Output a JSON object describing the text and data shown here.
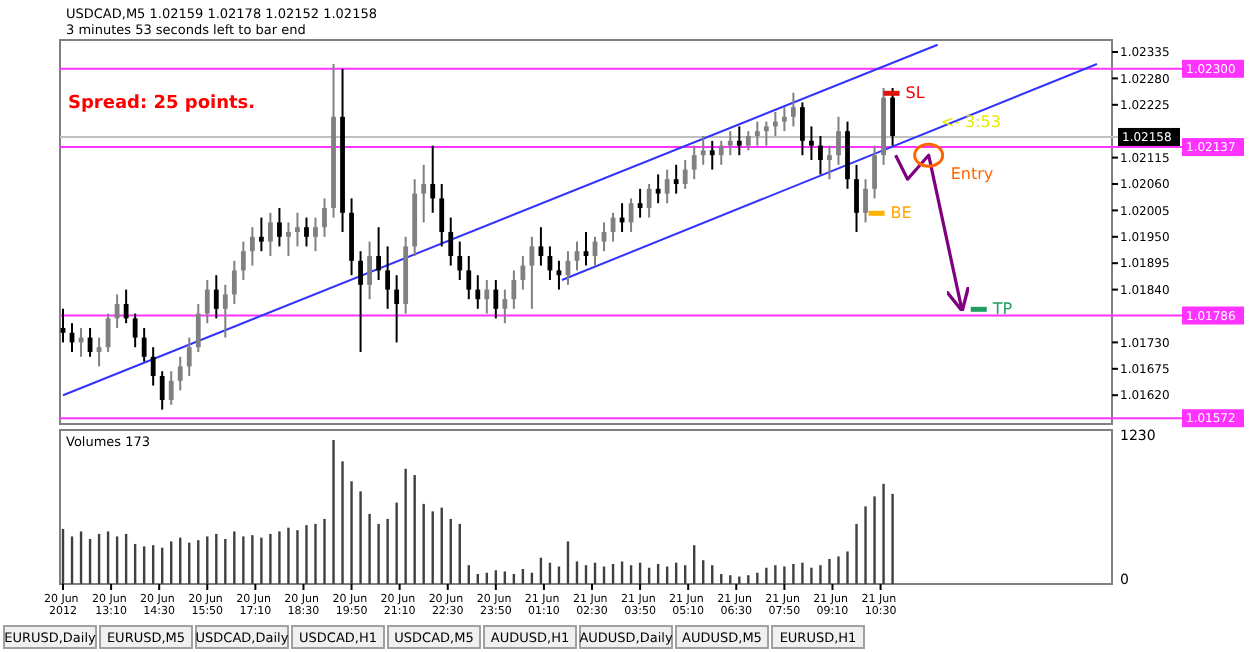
{
  "chart_data": [
    {
      "type": "candlestick",
      "title": "USDCAD,M5  1.02159 1.02178 1.02152 1.02158",
      "subtitle": "3 minutes 53 seconds left to bar end",
      "x": [
        "2012-06-20T11:50",
        "2012-06-20T12:05",
        "2012-06-20T12:20",
        "2012-06-20T12:35",
        "2012-06-20T12:50",
        "2012-06-20T13:05",
        "2012-06-20T13:20",
        "2012-06-20T13:35",
        "2012-06-20T13:50",
        "2012-06-20T14:05",
        "2012-06-20T14:20",
        "2012-06-20T14:35",
        "2012-06-20T14:50",
        "2012-06-20T15:05",
        "2012-06-20T15:20",
        "2012-06-20T15:35",
        "2012-06-20T15:50",
        "2012-06-20T16:05",
        "2012-06-20T16:20",
        "2012-06-20T16:35",
        "2012-06-20T16:50",
        "2012-06-20T17:05",
        "2012-06-20T17:20",
        "2012-06-20T17:35",
        "2012-06-20T17:50",
        "2012-06-20T18:05",
        "2012-06-20T18:20",
        "2012-06-20T18:35",
        "2012-06-20T18:50",
        "2012-06-20T19:05",
        "2012-06-20T19:20",
        "2012-06-20T19:35",
        "2012-06-20T19:50",
        "2012-06-20T20:05",
        "2012-06-20T20:20",
        "2012-06-20T20:35",
        "2012-06-20T20:50",
        "2012-06-20T21:05",
        "2012-06-20T21:20",
        "2012-06-20T21:35",
        "2012-06-20T21:50",
        "2012-06-20T22:05",
        "2012-06-20T22:20",
        "2012-06-20T22:35",
        "2012-06-20T22:50",
        "2012-06-20T23:05",
        "2012-06-20T23:20",
        "2012-06-20T23:35",
        "2012-06-20T23:50",
        "2012-06-21T00:05",
        "2012-06-21T00:20",
        "2012-06-21T00:35",
        "2012-06-21T00:50",
        "2012-06-21T01:05",
        "2012-06-21T01:20",
        "2012-06-21T01:35",
        "2012-06-21T01:50",
        "2012-06-21T02:05",
        "2012-06-21T02:20",
        "2012-06-21T02:35",
        "2012-06-21T02:50",
        "2012-06-21T03:05",
        "2012-06-21T03:20",
        "2012-06-21T03:35",
        "2012-06-21T03:50",
        "2012-06-21T04:05",
        "2012-06-21T04:20",
        "2012-06-21T04:35",
        "2012-06-21T04:50",
        "2012-06-21T05:05",
        "2012-06-21T05:20",
        "2012-06-21T05:35",
        "2012-06-21T05:50",
        "2012-06-21T06:05",
        "2012-06-21T06:20",
        "2012-06-21T06:35",
        "2012-06-21T06:50",
        "2012-06-21T07:05",
        "2012-06-21T07:20",
        "2012-06-21T07:35",
        "2012-06-21T07:50",
        "2012-06-21T08:05",
        "2012-06-21T08:20",
        "2012-06-21T08:35",
        "2012-06-21T08:50",
        "2012-06-21T09:05",
        "2012-06-21T09:20",
        "2012-06-21T09:35",
        "2012-06-21T09:50",
        "2012-06-21T10:05",
        "2012-06-21T10:20",
        "2012-06-21T10:35",
        "2012-06-21T10:50"
      ],
      "ohlc": [
        [
          1.0176,
          1.018,
          1.0173,
          1.0175
        ],
        [
          1.0175,
          1.0177,
          1.0171,
          1.0173
        ],
        [
          1.0173,
          1.0176,
          1.017,
          1.0174
        ],
        [
          1.0174,
          1.0176,
          1.017,
          1.0171
        ],
        [
          1.0171,
          1.0174,
          1.0168,
          1.0172
        ],
        [
          1.0172,
          1.0179,
          1.0171,
          1.0178
        ],
        [
          1.0178,
          1.0183,
          1.0176,
          1.0181
        ],
        [
          1.0181,
          1.0184,
          1.0177,
          1.0178
        ],
        [
          1.0178,
          1.0179,
          1.0172,
          1.0174
        ],
        [
          1.0174,
          1.0176,
          1.0169,
          1.017
        ],
        [
          1.017,
          1.0172,
          1.0164,
          1.0166
        ],
        [
          1.0166,
          1.0167,
          1.0159,
          1.0161
        ],
        [
          1.0161,
          1.0167,
          1.016,
          1.0165
        ],
        [
          1.0165,
          1.017,
          1.0163,
          1.0168
        ],
        [
          1.0168,
          1.0174,
          1.0166,
          1.0172
        ],
        [
          1.0172,
          1.0181,
          1.0171,
          1.0179
        ],
        [
          1.0179,
          1.0186,
          1.0177,
          1.0184
        ],
        [
          1.0184,
          1.0187,
          1.0178,
          1.018
        ],
        [
          1.018,
          1.0185,
          1.0174,
          1.0183
        ],
        [
          1.0183,
          1.019,
          1.0181,
          1.0188
        ],
        [
          1.0188,
          1.0194,
          1.0186,
          1.0192
        ],
        [
          1.0192,
          1.0197,
          1.0189,
          1.0195
        ],
        [
          1.0195,
          1.0199,
          1.0192,
          1.0194
        ],
        [
          1.0194,
          1.02,
          1.0191,
          1.0198
        ],
        [
          1.0198,
          1.0201,
          1.0193,
          1.0195
        ],
        [
          1.0195,
          1.0198,
          1.0191,
          1.0196
        ],
        [
          1.0196,
          1.02,
          1.0193,
          1.0197
        ],
        [
          1.0197,
          1.0199,
          1.0193,
          1.0195
        ],
        [
          1.0195,
          1.0199,
          1.0192,
          1.0197
        ],
        [
          1.0197,
          1.0203,
          1.0195,
          1.0201
        ],
        [
          1.0201,
          1.0231,
          1.0199,
          1.022
        ],
        [
          1.022,
          1.023,
          1.0196,
          1.02
        ],
        [
          1.02,
          1.0203,
          1.0187,
          1.019
        ],
        [
          1.019,
          1.0192,
          1.0171,
          1.0185
        ],
        [
          1.0185,
          1.0194,
          1.0182,
          1.0191
        ],
        [
          1.0191,
          1.0197,
          1.0186,
          1.0188
        ],
        [
          1.0188,
          1.0193,
          1.018,
          1.0184
        ],
        [
          1.0184,
          1.0187,
          1.0173,
          1.0181
        ],
        [
          1.0181,
          1.0195,
          1.0179,
          1.0193
        ],
        [
          1.0193,
          1.0207,
          1.0191,
          1.0204
        ],
        [
          1.0204,
          1.021,
          1.0198,
          1.0206
        ],
        [
          1.0206,
          1.0214,
          1.02,
          1.0203
        ],
        [
          1.0203,
          1.0206,
          1.0193,
          1.0196
        ],
        [
          1.0196,
          1.0199,
          1.0189,
          1.0191
        ],
        [
          1.0191,
          1.0194,
          1.0186,
          1.0188
        ],
        [
          1.0188,
          1.0191,
          1.0182,
          1.0184
        ],
        [
          1.0184,
          1.0187,
          1.018,
          1.0182
        ],
        [
          1.0182,
          1.0186,
          1.0179,
          1.0184
        ],
        [
          1.0184,
          1.0186,
          1.0178,
          1.018
        ],
        [
          1.018,
          1.0184,
          1.0177,
          1.0182
        ],
        [
          1.0182,
          1.0188,
          1.018,
          1.0186
        ],
        [
          1.0186,
          1.0191,
          1.0184,
          1.0189
        ],
        [
          1.0189,
          1.0195,
          1.018,
          1.0193
        ],
        [
          1.0193,
          1.0197,
          1.0189,
          1.0191
        ],
        [
          1.0191,
          1.0193,
          1.0186,
          1.0188
        ],
        [
          1.0188,
          1.019,
          1.0184,
          1.0187
        ],
        [
          1.0187,
          1.0192,
          1.0185,
          1.019
        ],
        [
          1.019,
          1.0194,
          1.0188,
          1.0192
        ],
        [
          1.0192,
          1.0196,
          1.0189,
          1.0191
        ],
        [
          1.0191,
          1.0195,
          1.0189,
          1.0194
        ],
        [
          1.0194,
          1.0198,
          1.0192,
          1.0196
        ],
        [
          1.0196,
          1.02,
          1.0194,
          1.0199
        ],
        [
          1.0199,
          1.0202,
          1.0196,
          1.0198
        ],
        [
          1.0198,
          1.0203,
          1.0196,
          1.0202
        ],
        [
          1.0202,
          1.0205,
          1.0199,
          1.0201
        ],
        [
          1.0201,
          1.0206,
          1.0199,
          1.0205
        ],
        [
          1.0205,
          1.0208,
          1.0202,
          1.0204
        ],
        [
          1.0204,
          1.0209,
          1.0202,
          1.0207
        ],
        [
          1.0207,
          1.021,
          1.0204,
          1.0206
        ],
        [
          1.0206,
          1.0211,
          1.0205,
          1.0209
        ],
        [
          1.0209,
          1.0214,
          1.0207,
          1.0212
        ],
        [
          1.0212,
          1.0216,
          1.021,
          1.0213
        ],
        [
          1.0213,
          1.0215,
          1.0209,
          1.0212
        ],
        [
          1.0212,
          1.0215,
          1.021,
          1.0214
        ],
        [
          1.0214,
          1.0217,
          1.0212,
          1.0215
        ],
        [
          1.0215,
          1.0218,
          1.0212,
          1.0214
        ],
        [
          1.0214,
          1.0217,
          1.0213,
          1.0216
        ],
        [
          1.0216,
          1.0219,
          1.0214,
          1.0217
        ],
        [
          1.0217,
          1.0219,
          1.0214,
          1.0218
        ],
        [
          1.0218,
          1.0221,
          1.0216,
          1.0219
        ],
        [
          1.0219,
          1.0222,
          1.0217,
          1.022
        ],
        [
          1.022,
          1.0225,
          1.0218,
          1.0222
        ],
        [
          1.0222,
          1.0223,
          1.0212,
          1.0215
        ],
        [
          1.0215,
          1.0218,
          1.0211,
          1.0214
        ],
        [
          1.0214,
          1.0216,
          1.0208,
          1.0211
        ],
        [
          1.0211,
          1.0214,
          1.0207,
          1.0212
        ],
        [
          1.0212,
          1.022,
          1.021,
          1.0217
        ],
        [
          1.0217,
          1.0219,
          1.0205,
          1.0207
        ],
        [
          1.0207,
          1.021,
          1.0196,
          1.02
        ],
        [
          1.02,
          1.0207,
          1.0198,
          1.0205
        ],
        [
          1.0205,
          1.0214,
          1.0203,
          1.0212
        ],
        [
          1.0212,
          1.0226,
          1.021,
          1.0224
        ],
        [
          1.0224,
          1.0226,
          1.0214,
          1.0216
        ]
      ],
      "series": [
        {
          "type": "line",
          "color": "#3333ff",
          "x": [
            "2012-06-20T11:50",
            "2012-06-21T12:05"
          ],
          "values": [
            1.0162,
            1.0235
          ]
        },
        {
          "type": "line",
          "color": "#3333ff",
          "x": [
            "2012-06-21T01:40",
            "2012-06-21T16:30"
          ],
          "values": [
            1.0186,
            1.0231
          ]
        },
        {
          "type": "line",
          "color": "#800080",
          "x": [
            "2012-06-21T10:55",
            "2012-06-21T11:15",
            "2012-06-21T11:50",
            "2012-06-21T12:45"
          ],
          "values": [
            1.0212,
            1.0207,
            1.0212,
            1.018
          ]
        }
      ],
      "xlim": [
        "2012-06-20T11:45",
        "2012-06-21T16:55"
      ],
      "ylim": [
        1.0156,
        1.0236
      ],
      "yticks": [
        {
          "value": 1.0162,
          "label": "1.01620"
        },
        {
          "value": 1.01675,
          "label": "1.01675"
        },
        {
          "value": 1.0173,
          "label": "1.01730"
        },
        {
          "value": 1.0184,
          "label": "1.01840"
        },
        {
          "value": 1.01895,
          "label": "1.01895"
        },
        {
          "value": 1.0195,
          "label": "1.01950"
        },
        {
          "value": 1.02005,
          "label": "1.02005"
        },
        {
          "value": 1.0206,
          "label": "1.02060"
        },
        {
          "value": 1.02115,
          "label": "1.02115"
        },
        {
          "value": 1.02225,
          "label": "1.02225"
        },
        {
          "value": 1.0228,
          "label": "1.02280"
        },
        {
          "value": 1.02335,
          "label": "1.02335"
        }
      ],
      "tick_labels": "y",
      "ref_lines": [
        {
          "axis": "y",
          "value": 1.023,
          "label": "1.02300",
          "color": "#ff33ff"
        },
        {
          "axis": "y",
          "value": 1.02137,
          "label": "1.02137",
          "color": "#ff33ff"
        },
        {
          "axis": "y",
          "value": 1.01786,
          "label": "1.01786",
          "color": "#ff33ff"
        },
        {
          "axis": "y",
          "value": 1.01572,
          "label": "1.01572",
          "color": "#ff33ff"
        },
        {
          "axis": "y",
          "value": 1.02158,
          "label": "1.02158",
          "color": "#c0c0c0"
        }
      ],
      "annotations": [
        "Spread: 25 points.",
        {
          "text": "SL",
          "x": "2012-06-21T10:35",
          "y": 1.0225
        },
        {
          "text": "BE",
          "x": "2012-06-21T10:10",
          "y": 1.02
        },
        {
          "text": "TP",
          "x": "2012-06-21T13:00",
          "y": 1.018
        },
        {
          "text": "Entry",
          "x": "2012-06-21T11:50",
          "y": 1.0212
        },
        {
          "text": "<- 3:53",
          "x": "2012-06-21T12:10",
          "y": 1.0219
        }
      ]
    },
    {
      "type": "bar",
      "title": "Volumes 173",
      "color": "#404040",
      "x": [
        "2012-06-20T11:50",
        "2012-06-20T12:05",
        "2012-06-20T12:20",
        "2012-06-20T12:35",
        "2012-06-20T12:50",
        "2012-06-20T13:05",
        "2012-06-20T13:20",
        "2012-06-20T13:35",
        "2012-06-20T13:50",
        "2012-06-20T14:05",
        "2012-06-20T14:20",
        "2012-06-20T14:35",
        "2012-06-20T14:50",
        "2012-06-20T15:05",
        "2012-06-20T15:20",
        "2012-06-20T15:35",
        "2012-06-20T15:50",
        "2012-06-20T16:05",
        "2012-06-20T16:20",
        "2012-06-20T16:35",
        "2012-06-20T16:50",
        "2012-06-20T17:05",
        "2012-06-20T17:20",
        "2012-06-20T17:35",
        "2012-06-20T17:50",
        "2012-06-20T18:05",
        "2012-06-20T18:20",
        "2012-06-20T18:35",
        "2012-06-20T18:50",
        "2012-06-20T19:05",
        "2012-06-20T19:20",
        "2012-06-20T19:35",
        "2012-06-20T19:50",
        "2012-06-20T20:05",
        "2012-06-20T20:20",
        "2012-06-20T20:35",
        "2012-06-20T20:50",
        "2012-06-20T21:05",
        "2012-06-20T21:20",
        "2012-06-20T21:35",
        "2012-06-20T21:50",
        "2012-06-20T22:05",
        "2012-06-20T22:20",
        "2012-06-20T22:35",
        "2012-06-20T22:50",
        "2012-06-20T23:05",
        "2012-06-20T23:20",
        "2012-06-20T23:35",
        "2012-06-20T23:50",
        "2012-06-21T00:05",
        "2012-06-21T00:20",
        "2012-06-21T00:35",
        "2012-06-21T00:50",
        "2012-06-21T01:05",
        "2012-06-21T01:20",
        "2012-06-21T01:35",
        "2012-06-21T01:50",
        "2012-06-21T02:05",
        "2012-06-21T02:20",
        "2012-06-21T02:35",
        "2012-06-21T02:50",
        "2012-06-21T03:05",
        "2012-06-21T03:20",
        "2012-06-21T03:35",
        "2012-06-21T03:50",
        "2012-06-21T04:05",
        "2012-06-21T04:20",
        "2012-06-21T04:35",
        "2012-06-21T04:50",
        "2012-06-21T05:05",
        "2012-06-21T05:20",
        "2012-06-21T05:35",
        "2012-06-21T05:50",
        "2012-06-21T06:05",
        "2012-06-21T06:20",
        "2012-06-21T06:35",
        "2012-06-21T06:50",
        "2012-06-21T07:05",
        "2012-06-21T07:20",
        "2012-06-21T07:35",
        "2012-06-21T07:50",
        "2012-06-21T08:05",
        "2012-06-21T08:20",
        "2012-06-21T08:35",
        "2012-06-21T08:50",
        "2012-06-21T09:05",
        "2012-06-21T09:20",
        "2012-06-21T09:35",
        "2012-06-21T09:50",
        "2012-06-21T10:05",
        "2012-06-21T10:20",
        "2012-06-21T10:35",
        "2012-06-21T10:50"
      ],
      "values": [
        440,
        380,
        420,
        360,
        400,
        420,
        380,
        400,
        320,
        300,
        310,
        290,
        340,
        370,
        330,
        350,
        380,
        400,
        360,
        420,
        380,
        390,
        370,
        400,
        420,
        450,
        430,
        470,
        480,
        520,
        1150,
        980,
        820,
        740,
        560,
        480,
        520,
        650,
        920,
        870,
        640,
        580,
        610,
        520,
        480,
        150,
        80,
        90,
        110,
        100,
        80,
        120,
        90,
        210,
        170,
        140,
        340,
        180,
        150,
        170,
        140,
        160,
        180,
        150,
        170,
        130,
        160,
        140,
        170,
        150,
        310,
        190,
        150,
        80,
        70,
        60,
        70,
        90,
        130,
        150,
        140,
        160,
        170,
        130,
        150,
        200,
        220,
        260,
        480,
        620,
        700,
        800,
        720
      ],
      "xlim": [
        "2012-06-20T11:45",
        "2012-06-21T16:55"
      ],
      "xticks": [
        {
          "value": "2012-06-20T11:50",
          "label": "20 Jun 2012"
        },
        {
          "value": "2012-06-20T13:10",
          "label": "20 Jun 13:10"
        },
        {
          "value": "2012-06-20T14:30",
          "label": "20 Jun 14:30"
        },
        {
          "value": "2012-06-20T15:50",
          "label": "20 Jun 15:50"
        },
        {
          "value": "2012-06-20T17:10",
          "label": "20 Jun 17:10"
        },
        {
          "value": "2012-06-20T18:30",
          "label": "20 Jun 18:30"
        },
        {
          "value": "2012-06-20T19:50",
          "label": "20 Jun 19:50"
        },
        {
          "value": "2012-06-20T21:10",
          "label": "20 Jun 21:10"
        },
        {
          "value": "2012-06-20T22:30",
          "label": "20 Jun 22:30"
        },
        {
          "value": "2012-06-20T23:50",
          "label": "20 Jun 23:50"
        },
        {
          "value": "2012-06-21T01:10",
          "label": "21 Jun 01:10"
        },
        {
          "value": "2012-06-21T02:30",
          "label": "21 Jun 02:30"
        },
        {
          "value": "2012-06-21T03:50",
          "label": "21 Jun 03:50"
        },
        {
          "value": "2012-06-21T05:10",
          "label": "21 Jun 05:10"
        },
        {
          "value": "2012-06-21T06:30",
          "label": "21 Jun 06:30"
        },
        {
          "value": "2012-06-21T07:50",
          "label": "21 Jun 07:50"
        },
        {
          "value": "2012-06-21T09:10",
          "label": "21 Jun 09:10"
        },
        {
          "value": "2012-06-21T10:30",
          "label": "21 Jun 10:30"
        }
      ],
      "ylim": [
        0,
        1230
      ],
      "yticks": [
        0,
        1230
      ]
    },
    {
      "type": "other",
      "annotations": [
        "EURUSD,Daily",
        "EURUSD,M5",
        "USDCAD,Daily",
        "USDCAD,H1",
        "USDCAD,M5",
        "AUDUSD,H1",
        "AUDUSD,Daily",
        "AUDUSD,M5",
        "EURUSD,H1"
      ]
    }
  ]
}
